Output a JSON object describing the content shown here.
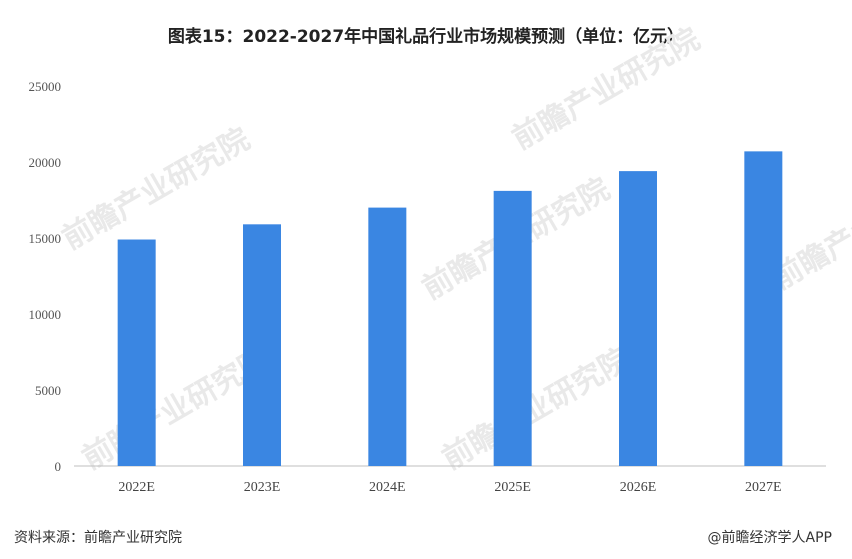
{
  "title": "图表15：2022-2027年中国礼品行业市场规模预测（单位：亿元）",
  "chart_data": {
    "type": "bar",
    "title": "图表15：2022-2027年中国礼品行业市场规模预测（单位：亿元）",
    "categories": [
      "2022E",
      "2023E",
      "2024E",
      "2025E",
      "2026E",
      "2027E"
    ],
    "values": [
      14900,
      15900,
      17000,
      18100,
      19400,
      20700
    ],
    "ylim": [
      0,
      25000
    ],
    "yticks": [
      "0",
      "5000",
      "10000",
      "15000",
      "20000",
      "25000"
    ],
    "grid": false,
    "bar_color": "#3a86e2"
  },
  "watermark": "前瞻产业研究院",
  "footer": {
    "source": "资料来源：前瞻产业研究院",
    "brand": "@前瞻经济学人APP"
  }
}
